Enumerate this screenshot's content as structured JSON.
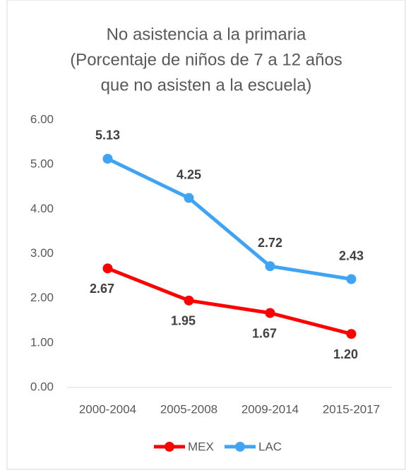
{
  "chart_data": {
    "type": "line",
    "title": [
      "No asistencia a la primaria",
      "(Porcentaje de niños de 7 a 12 años",
      "que no asisten a la escuela)"
    ],
    "categories": [
      "2000-2004",
      "2005-2008",
      "2009-2014",
      "2015-2017"
    ],
    "series": [
      {
        "name": "MEX",
        "color": "#ff0000",
        "values": [
          2.67,
          1.95,
          1.67,
          1.2
        ],
        "value_labels": [
          "2.67",
          "1.95",
          "1.67",
          "1.20"
        ]
      },
      {
        "name": "LAC",
        "color": "#3fa4f5",
        "values": [
          5.13,
          4.25,
          2.72,
          2.43
        ],
        "value_labels": [
          "5.13",
          "4.25",
          "2.72",
          "2.43"
        ]
      }
    ],
    "ylim": [
      0,
      6
    ],
    "yticks": [
      {
        "value": 0,
        "label": "0.00"
      },
      {
        "value": 1,
        "label": "1.00"
      },
      {
        "value": 2,
        "label": "2.00"
      },
      {
        "value": 3,
        "label": "3.00"
      },
      {
        "value": 4,
        "label": "4.00"
      },
      {
        "value": 5,
        "label": "5.00"
      },
      {
        "value": 6,
        "label": "6.00"
      }
    ],
    "grid": false,
    "legend": "bottom"
  }
}
